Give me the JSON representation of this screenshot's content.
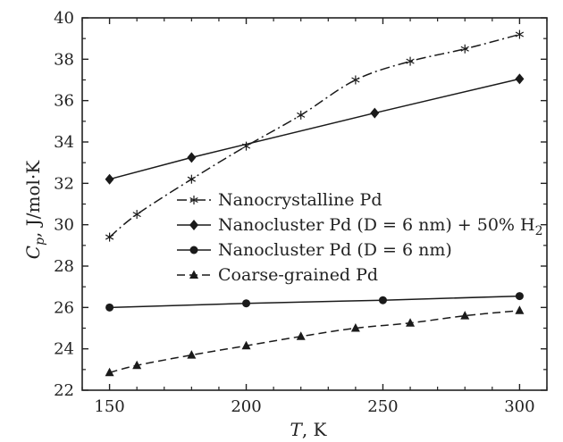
{
  "chart_data": {
    "type": "line",
    "xlabel": "T, K",
    "ylabel": "Cp, J/mol·K",
    "xlim": [
      140,
      310
    ],
    "ylim": [
      22,
      40
    ],
    "xticks": [
      150,
      200,
      250,
      300
    ],
    "yticks": [
      22,
      24,
      26,
      28,
      30,
      32,
      34,
      36,
      38,
      40
    ],
    "grid": false,
    "legend_position": "center-right",
    "series": [
      {
        "name": "Nanocrystalline Pd",
        "marker": "asterisk",
        "line_style": "dash-dot",
        "color": "#1a1a1a",
        "x": [
          150,
          160,
          180,
          200,
          220,
          240,
          260,
          280,
          300
        ],
        "y": [
          29.4,
          30.5,
          32.2,
          33.8,
          35.3,
          37.0,
          37.9,
          38.5,
          39.2
        ]
      },
      {
        "name": "Nanocluster Pd (D = 6 nm) + 50% H2",
        "marker": "diamond",
        "line_style": "solid",
        "color": "#1a1a1a",
        "x": [
          150,
          180,
          247,
          300
        ],
        "y": [
          32.2,
          33.25,
          35.4,
          37.05
        ]
      },
      {
        "name": "Nanocluster Pd (D = 6 nm)",
        "marker": "circle",
        "line_style": "solid",
        "color": "#1a1a1a",
        "x": [
          150,
          200,
          250,
          300
        ],
        "y": [
          26.0,
          26.2,
          26.35,
          26.55
        ]
      },
      {
        "name": "Coarse-grained Pd",
        "marker": "triangle",
        "line_style": "dashed",
        "color": "#1a1a1a",
        "x": [
          150,
          160,
          180,
          200,
          220,
          240,
          260,
          280,
          300
        ],
        "y": [
          22.85,
          23.2,
          23.7,
          24.15,
          24.6,
          25.0,
          25.25,
          25.6,
          25.85
        ]
      }
    ]
  }
}
